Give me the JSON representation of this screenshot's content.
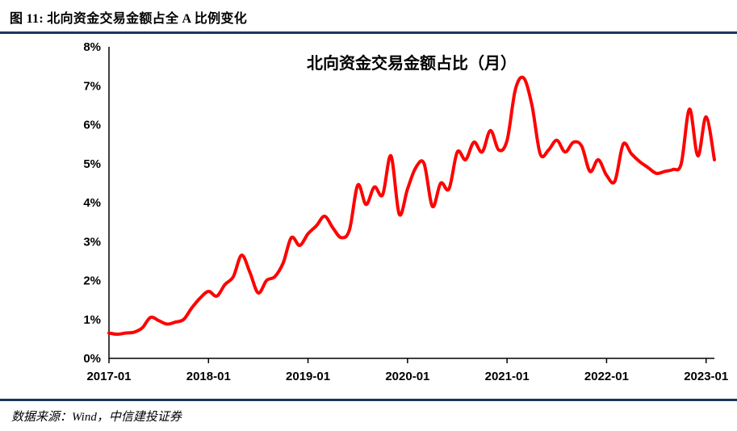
{
  "header": {
    "title": "图 11: 北向资金交易金额占全 A 比例变化"
  },
  "footer": {
    "source": "数据来源：Wind，中信建投证券"
  },
  "colors": {
    "line": "#FF0000",
    "rule": "#17375E",
    "axis": "#000000"
  },
  "chart_data": {
    "type": "line",
    "title": "北向资金交易金额占比（月）",
    "series_name": "北向资金交易金额占比",
    "legend": "none",
    "grid": false,
    "line_color": "#FF0000",
    "ylim": [
      0,
      8
    ],
    "y_ticks": [
      "0%",
      "1%",
      "2%",
      "3%",
      "4%",
      "5%",
      "6%",
      "7%",
      "8%"
    ],
    "x_tick_labels": [
      "2017-01",
      "2018-01",
      "2019-01",
      "2020-01",
      "2021-01",
      "2022-01",
      "2023-01"
    ],
    "x_tick_indices": [
      0,
      12,
      24,
      36,
      48,
      60,
      72
    ],
    "x": [
      "2017-01",
      "2017-02",
      "2017-03",
      "2017-04",
      "2017-05",
      "2017-06",
      "2017-07",
      "2017-08",
      "2017-09",
      "2017-10",
      "2017-11",
      "2017-12",
      "2018-01",
      "2018-02",
      "2018-03",
      "2018-04",
      "2018-05",
      "2018-06",
      "2018-07",
      "2018-08",
      "2018-09",
      "2018-10",
      "2018-11",
      "2018-12",
      "2019-01",
      "2019-02",
      "2019-03",
      "2019-04",
      "2019-05",
      "2019-06",
      "2019-07",
      "2019-08",
      "2019-09",
      "2019-10",
      "2019-11",
      "2019-12",
      "2020-01",
      "2020-02",
      "2020-03",
      "2020-04",
      "2020-05",
      "2020-06",
      "2020-07",
      "2020-08",
      "2020-09",
      "2020-10",
      "2020-11",
      "2020-12",
      "2021-01",
      "2021-02",
      "2021-03",
      "2021-04",
      "2021-05",
      "2021-06",
      "2021-07",
      "2021-08",
      "2021-09",
      "2021-10",
      "2021-11",
      "2021-12",
      "2022-01",
      "2022-02",
      "2022-03",
      "2022-04",
      "2022-05",
      "2022-06",
      "2022-07",
      "2022-08",
      "2022-09",
      "2022-10",
      "2022-11",
      "2022-12",
      "2023-01",
      "2023-02"
    ],
    "values": [
      0.65,
      0.62,
      0.65,
      0.67,
      0.78,
      1.05,
      0.97,
      0.88,
      0.93,
      1.0,
      1.3,
      1.55,
      1.72,
      1.6,
      1.9,
      2.1,
      2.65,
      2.2,
      1.68,
      2.0,
      2.1,
      2.45,
      3.1,
      2.9,
      3.2,
      3.4,
      3.65,
      3.35,
      3.1,
      3.3,
      4.45,
      3.95,
      4.4,
      4.2,
      5.2,
      3.7,
      4.35,
      4.9,
      5.0,
      3.9,
      4.5,
      4.35,
      5.3,
      5.1,
      5.55,
      5.3,
      5.85,
      5.35,
      5.6,
      6.9,
      7.2,
      6.5,
      5.25,
      5.35,
      5.6,
      5.3,
      5.55,
      5.45,
      4.8,
      5.1,
      4.7,
      4.55,
      5.5,
      5.25,
      5.05,
      4.9,
      4.75,
      4.8,
      4.85,
      5.0,
      6.4,
      5.2,
      6.2,
      5.1
    ],
    "unit": "%"
  }
}
